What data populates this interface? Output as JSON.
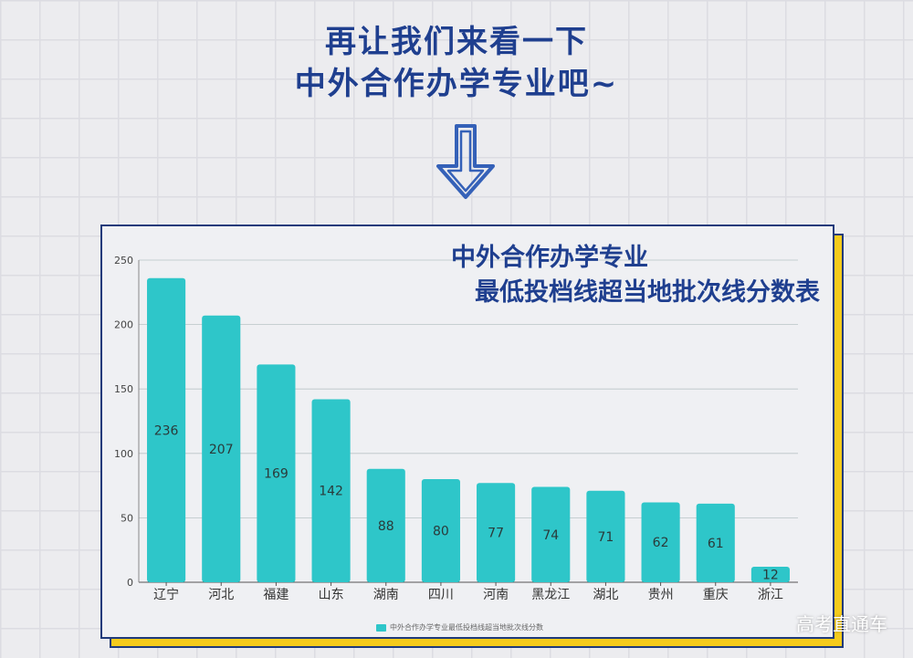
{
  "header": {
    "line1": "再让我们来看一下",
    "line2": "中外合作办学专业吧~"
  },
  "card": {
    "title_line1": "中外合作办学专业",
    "title_line2": "最低投档线超当地批次线分数表"
  },
  "chart_data": {
    "type": "bar",
    "categories": [
      "辽宁",
      "河北",
      "福建",
      "山东",
      "湖南",
      "四川",
      "河南",
      "黑龙江",
      "湖北",
      "贵州",
      "重庆",
      "浙江"
    ],
    "series": [
      {
        "name": "中外合作办学专业最低投档线超当地批次线分数",
        "values": [
          236,
          207,
          169,
          142,
          88,
          80,
          77,
          74,
          71,
          62,
          61,
          12
        ]
      }
    ],
    "ylim": [
      0,
      250
    ],
    "yticks": [
      0,
      50,
      100,
      150,
      200,
      250
    ],
    "bar_color": "#2ec6c9",
    "grid": true,
    "legend_position": "bottom"
  },
  "watermark": "高考直通车"
}
